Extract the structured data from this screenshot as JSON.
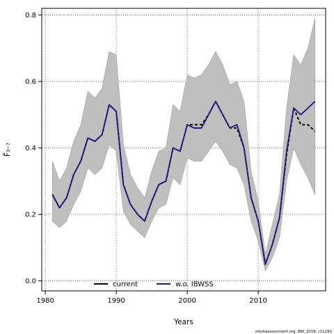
{
  "chart_data": {
    "type": "line",
    "xlabel": "Years",
    "ylabel": "F̄₃₋₇",
    "xlim": [
      1979.5,
      2019.5
    ],
    "ylim": [
      -0.03,
      0.82
    ],
    "x_ticks": [
      1980,
      1990,
      2000,
      2010
    ],
    "y_ticks": [
      0.0,
      0.2,
      0.4,
      0.6,
      0.8
    ],
    "y_tick_labels": [
      "0.0",
      "0.2",
      "0.4",
      "0.6",
      "0.8"
    ],
    "grid": "dotted",
    "legend_position": "bottom",
    "band": {
      "x": [
        1981,
        1982,
        1983,
        1984,
        1985,
        1986,
        1987,
        1988,
        1989,
        1990,
        1991,
        1992,
        1993,
        1994,
        1995,
        1996,
        1997,
        1998,
        1999,
        2000,
        2001,
        2002,
        2003,
        2004,
        2005,
        2006,
        2007,
        2008,
        2009,
        2010,
        2011,
        2012,
        2013,
        2014,
        2015,
        2016,
        2017,
        2018
      ],
      "upper": [
        0.36,
        0.3,
        0.34,
        0.42,
        0.47,
        0.57,
        0.55,
        0.58,
        0.69,
        0.68,
        0.41,
        0.32,
        0.28,
        0.25,
        0.33,
        0.39,
        0.4,
        0.53,
        0.51,
        0.62,
        0.61,
        0.62,
        0.65,
        0.69,
        0.65,
        0.59,
        0.6,
        0.54,
        0.33,
        0.24,
        0.08,
        0.17,
        0.26,
        0.52,
        0.68,
        0.65,
        0.7,
        0.79
      ],
      "lower": [
        0.18,
        0.16,
        0.18,
        0.23,
        0.27,
        0.34,
        0.32,
        0.34,
        0.41,
        0.39,
        0.21,
        0.17,
        0.15,
        0.13,
        0.18,
        0.22,
        0.23,
        0.31,
        0.29,
        0.37,
        0.36,
        0.36,
        0.39,
        0.42,
        0.39,
        0.35,
        0.34,
        0.29,
        0.18,
        0.12,
        0.03,
        0.07,
        0.13,
        0.3,
        0.4,
        0.35,
        0.31,
        0.26
      ]
    },
    "series": [
      {
        "name": "current",
        "color": "#000000",
        "dash": "4,3",
        "x": [
          1981,
          1982,
          1983,
          1984,
          1985,
          1986,
          1987,
          1988,
          1989,
          1990,
          1991,
          1992,
          1993,
          1994,
          1995,
          1996,
          1997,
          1998,
          1999,
          2000,
          2001,
          2002,
          2003,
          2004,
          2005,
          2006,
          2007,
          2008,
          2009,
          2010,
          2011,
          2012,
          2013,
          2014,
          2015,
          2016,
          2017,
          2018
        ],
        "values": [
          0.26,
          0.22,
          0.25,
          0.32,
          0.36,
          0.43,
          0.42,
          0.44,
          0.53,
          0.51,
          0.29,
          0.23,
          0.2,
          0.18,
          0.24,
          0.29,
          0.3,
          0.4,
          0.39,
          0.47,
          0.47,
          0.47,
          0.5,
          0.54,
          0.5,
          0.46,
          0.46,
          0.4,
          0.25,
          0.18,
          0.05,
          0.11,
          0.19,
          0.38,
          0.52,
          0.47,
          0.47,
          0.45
        ]
      },
      {
        "name": "w.o. IBWSS",
        "color": "#2d1b7a",
        "dash": "",
        "x": [
          1981,
          1982,
          1983,
          1984,
          1985,
          1986,
          1987,
          1988,
          1989,
          1990,
          1991,
          1992,
          1993,
          1994,
          1995,
          1996,
          1997,
          1998,
          1999,
          2000,
          2001,
          2002,
          2003,
          2004,
          2005,
          2006,
          2007,
          2008,
          2009,
          2010,
          2011,
          2012,
          2013,
          2014,
          2015,
          2016,
          2017,
          2018
        ],
        "values": [
          0.26,
          0.22,
          0.25,
          0.32,
          0.36,
          0.43,
          0.42,
          0.44,
          0.53,
          0.51,
          0.29,
          0.23,
          0.2,
          0.18,
          0.24,
          0.29,
          0.3,
          0.4,
          0.39,
          0.47,
          0.46,
          0.46,
          0.5,
          0.54,
          0.5,
          0.46,
          0.47,
          0.4,
          0.25,
          0.18,
          0.05,
          0.11,
          0.19,
          0.39,
          0.52,
          0.5,
          0.52,
          0.54
        ]
      }
    ],
    "footer": "stockassessment.org, BW_2018, r11292"
  }
}
